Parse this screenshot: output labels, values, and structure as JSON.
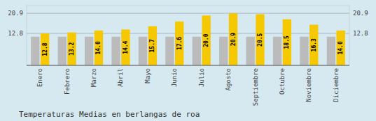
{
  "chart_data": {
    "type": "bar",
    "title": "Temperaturas Medias en berlangas de roa",
    "categories": [
      "Enero",
      "Febrero",
      "Marzo",
      "Abril",
      "Mayo",
      "Junio",
      "Julio",
      "Agosto",
      "Septiembre",
      "Octubre",
      "Noviembre",
      "Diciembre"
    ],
    "series": [
      {
        "color": "#BBBBBB",
        "values": [
          11.5,
          11.5,
          11.5,
          11.5,
          11.5,
          11.5,
          11.5,
          11.5,
          11.5,
          11.5,
          11.5,
          11.5
        ]
      },
      {
        "color": "#F5C800",
        "values": [
          12.8,
          13.2,
          14.0,
          14.4,
          15.7,
          17.6,
          20.0,
          20.9,
          20.5,
          18.5,
          16.3,
          14.0
        ],
        "value_labels": [
          "12.8",
          "13.2",
          "14.0",
          "14.4",
          "15.7",
          "17.6",
          "20.0",
          "20.9",
          "20.5",
          "18.5",
          "16.3",
          "14.0"
        ],
        "data_labels": true
      }
    ],
    "ylim": [
      0,
      24.0
    ],
    "yticks": [
      12.8,
      20.9
    ],
    "grid": true
  }
}
